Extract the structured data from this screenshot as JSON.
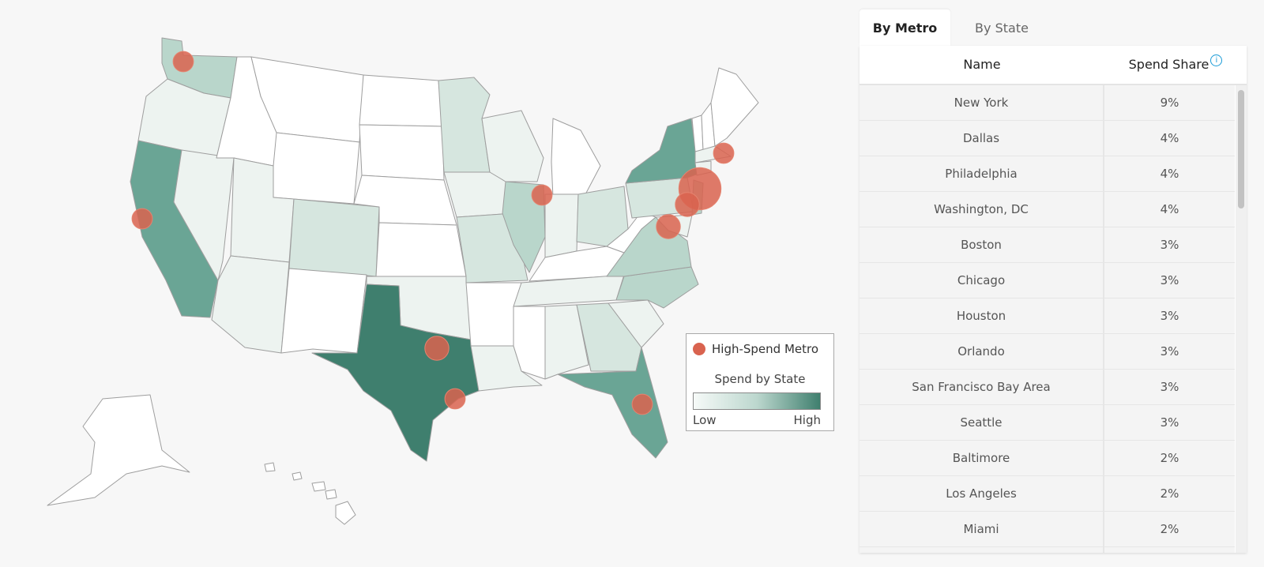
{
  "map": {
    "colors": {
      "none": "#ffffff",
      "low": "#edf3f0",
      "low_mid": "#d6e6df",
      "mid": "#b9d6cb",
      "high": "#6aa595",
      "highest": "#3f7f6e",
      "metro": "#d9634f"
    },
    "states": [
      {
        "name": "Washington",
        "level": "mid"
      },
      {
        "name": "Oregon",
        "level": "low"
      },
      {
        "name": "California",
        "level": "high"
      },
      {
        "name": "Nevada",
        "level": "low"
      },
      {
        "name": "Idaho",
        "level": "none"
      },
      {
        "name": "Montana",
        "level": "none"
      },
      {
        "name": "Wyoming",
        "level": "none"
      },
      {
        "name": "Utah",
        "level": "low"
      },
      {
        "name": "Arizona",
        "level": "low"
      },
      {
        "name": "Colorado",
        "level": "low_mid"
      },
      {
        "name": "New Mexico",
        "level": "none"
      },
      {
        "name": "North Dakota",
        "level": "none"
      },
      {
        "name": "South Dakota",
        "level": "none"
      },
      {
        "name": "Nebraska",
        "level": "none"
      },
      {
        "name": "Kansas",
        "level": "none"
      },
      {
        "name": "Oklahoma",
        "level": "low"
      },
      {
        "name": "Texas",
        "level": "highest"
      },
      {
        "name": "Minnesota",
        "level": "low_mid"
      },
      {
        "name": "Iowa",
        "level": "low"
      },
      {
        "name": "Missouri",
        "level": "low_mid"
      },
      {
        "name": "Arkansas",
        "level": "none"
      },
      {
        "name": "Louisiana",
        "level": "low"
      },
      {
        "name": "Wisconsin",
        "level": "low"
      },
      {
        "name": "Illinois",
        "level": "mid"
      },
      {
        "name": "Michigan",
        "level": "none"
      },
      {
        "name": "Indiana",
        "level": "low"
      },
      {
        "name": "Ohio",
        "level": "low_mid"
      },
      {
        "name": "Kentucky",
        "level": "none"
      },
      {
        "name": "Tennessee",
        "level": "low"
      },
      {
        "name": "Mississippi",
        "level": "none"
      },
      {
        "name": "Alabama",
        "level": "low"
      },
      {
        "name": "Georgia",
        "level": "low_mid"
      },
      {
        "name": "Florida",
        "level": "high"
      },
      {
        "name": "South Carolina",
        "level": "low"
      },
      {
        "name": "North Carolina",
        "level": "mid"
      },
      {
        "name": "Virginia",
        "level": "mid"
      },
      {
        "name": "West Virginia",
        "level": "none"
      },
      {
        "name": "Pennsylvania",
        "level": "low_mid"
      },
      {
        "name": "New York",
        "level": "high"
      },
      {
        "name": "Vermont",
        "level": "none"
      },
      {
        "name": "New Hampshire",
        "level": "none"
      },
      {
        "name": "Maine",
        "level": "none"
      },
      {
        "name": "Massachusetts",
        "level": "low"
      },
      {
        "name": "Connecticut",
        "level": "low"
      },
      {
        "name": "New Jersey",
        "level": "mid"
      },
      {
        "name": "Maryland",
        "level": "low"
      },
      {
        "name": "Alaska",
        "level": "none"
      },
      {
        "name": "Hawaii",
        "level": "none"
      }
    ],
    "metros": [
      {
        "name": "Seattle",
        "share": 3
      },
      {
        "name": "San Francisco Bay Area",
        "share": 3
      },
      {
        "name": "Dallas",
        "share": 4
      },
      {
        "name": "Houston",
        "share": 3
      },
      {
        "name": "Chicago",
        "share": 3
      },
      {
        "name": "New York",
        "share": 9
      },
      {
        "name": "Philadelphia",
        "share": 4
      },
      {
        "name": "Washington, DC",
        "share": 4
      },
      {
        "name": "Boston",
        "share": 3
      },
      {
        "name": "Orlando",
        "share": 3
      }
    ]
  },
  "legend": {
    "metro_label": "High-Spend Metro",
    "spend_title": "Spend by State",
    "low_label": "Low",
    "high_label": "High"
  },
  "tabs": {
    "metro": "By Metro",
    "state": "By State"
  },
  "table": {
    "col_name": "Name",
    "col_share": "Spend Share",
    "info_icon": "i",
    "rows": [
      {
        "name": "New York",
        "share": "9%"
      },
      {
        "name": "Dallas",
        "share": "4%"
      },
      {
        "name": "Philadelphia",
        "share": "4%"
      },
      {
        "name": "Washington, DC",
        "share": "4%"
      },
      {
        "name": "Boston",
        "share": "3%"
      },
      {
        "name": "Chicago",
        "share": "3%"
      },
      {
        "name": "Houston",
        "share": "3%"
      },
      {
        "name": "Orlando",
        "share": "3%"
      },
      {
        "name": "San Francisco Bay Area",
        "share": "3%"
      },
      {
        "name": "Seattle",
        "share": "3%"
      },
      {
        "name": "Baltimore",
        "share": "2%"
      },
      {
        "name": "Los Angeles",
        "share": "2%"
      },
      {
        "name": "Miami",
        "share": "2%"
      },
      {
        "name": "",
        "share": ""
      }
    ]
  }
}
